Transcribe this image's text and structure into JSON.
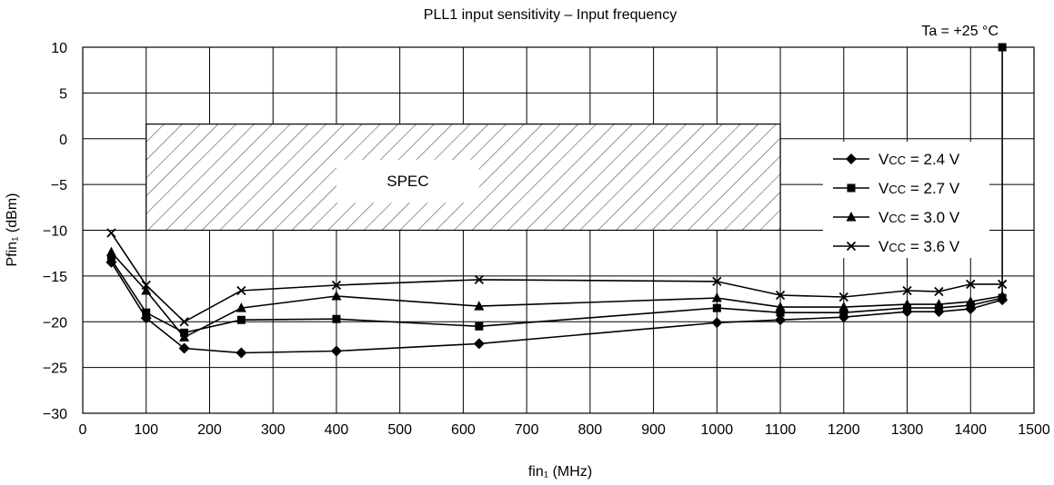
{
  "chart_data": {
    "type": "line",
    "title": "PLL1 input sensitivity – Input frequency",
    "annotation": "Ta = +25 °C",
    "xlabel": "fin₁ (MHz)",
    "ylabel": "Pfin₁ (dBm)",
    "xlim": [
      0,
      1500
    ],
    "ylim": [
      -30,
      10
    ],
    "xticks": [
      0,
      100,
      200,
      300,
      400,
      500,
      600,
      700,
      800,
      900,
      1000,
      1100,
      1200,
      1300,
      1400,
      1500
    ],
    "yticks": [
      10,
      5,
      0,
      -5,
      -10,
      -15,
      -20,
      -25,
      -30
    ],
    "ytick_labels": [
      "10",
      "5",
      "0",
      "−5",
      "−10",
      "−15",
      "−20",
      "−25",
      "−30"
    ],
    "grid": true,
    "legend_placement": "right",
    "spec_region": {
      "label": "SPEC",
      "x": [
        100,
        1100
      ],
      "y": [
        -10,
        1.6
      ]
    },
    "series": [
      {
        "name": "Vcc = 2.4 V",
        "marker": "diamond",
        "x": [
          45,
          100,
          160,
          250,
          400,
          625,
          1000,
          1100,
          1200,
          1300,
          1350,
          1400,
          1450
        ],
        "y": [
          -13.5,
          -19.6,
          -22.9,
          -23.4,
          -23.2,
          -22.4,
          -20.1,
          -19.8,
          -19.5,
          -18.9,
          -18.9,
          -18.6,
          -17.6
        ]
      },
      {
        "name": "Vcc = 2.7 V",
        "marker": "square",
        "x": [
          45,
          100,
          160,
          250,
          400,
          625,
          1000,
          1100,
          1200,
          1300,
          1350,
          1400,
          1450,
          1450
        ],
        "y": [
          -13.2,
          -19.0,
          -21.2,
          -19.8,
          -19.7,
          -20.5,
          -18.5,
          -19.0,
          -19.0,
          -18.5,
          -18.5,
          -18.2,
          -17.4,
          10
        ]
      },
      {
        "name": "Vcc = 3.0 V",
        "marker": "triangle",
        "x": [
          45,
          100,
          160,
          250,
          400,
          625,
          1000,
          1100,
          1200,
          1300,
          1350,
          1400,
          1450
        ],
        "y": [
          -12.4,
          -16.6,
          -21.7,
          -18.5,
          -17.2,
          -18.3,
          -17.4,
          -18.4,
          -18.4,
          -18.1,
          -18.1,
          -17.8,
          -17.2
        ]
      },
      {
        "name": "Vcc = 3.6 V",
        "marker": "x",
        "x": [
          45,
          100,
          160,
          250,
          400,
          625,
          1000,
          1100,
          1200,
          1300,
          1350,
          1400,
          1450
        ],
        "y": [
          -10.3,
          -16.0,
          -20.0,
          -16.6,
          -16.0,
          -15.4,
          -15.6,
          -17.1,
          -17.3,
          -16.6,
          -16.7,
          -15.9,
          -15.9
        ]
      }
    ],
    "legend_labels": [
      {
        "main": "V",
        "sub": "CC",
        "rest": " = 2.4 V"
      },
      {
        "main": "V",
        "sub": "CC",
        "rest": " = 2.7 V"
      },
      {
        "main": "V",
        "sub": "CC",
        "rest": " = 3.0 V"
      },
      {
        "main": "V",
        "sub": "CC",
        "rest": " = 3.6 V"
      }
    ]
  }
}
